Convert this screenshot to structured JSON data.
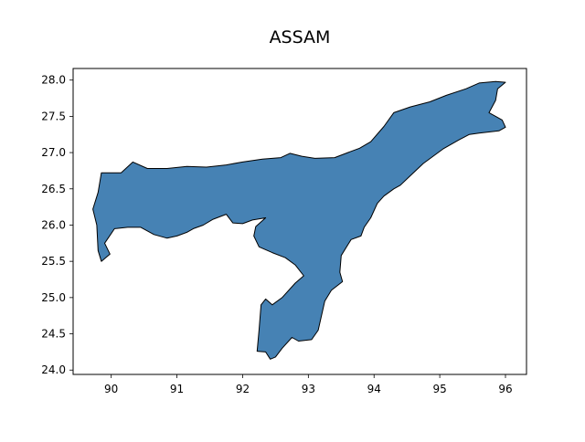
{
  "map": {
    "title": "ASSAM",
    "region_fill": "#4682b4",
    "region_edge": "#000000",
    "xlim": [
      89.42,
      96.32
    ],
    "ylim": [
      23.94,
      28.16
    ],
    "xticks": [
      "90",
      "91",
      "92",
      "93",
      "94",
      "95",
      "96"
    ],
    "yticks": [
      "24.0",
      "24.5",
      "25.0",
      "25.5",
      "26.0",
      "26.5",
      "27.0",
      "27.5",
      "28.0"
    ],
    "outline_lonlat": [
      [
        89.85,
        26.72
      ],
      [
        90.15,
        26.72
      ],
      [
        90.33,
        26.87
      ],
      [
        90.55,
        26.78
      ],
      [
        90.85,
        26.78
      ],
      [
        91.15,
        26.81
      ],
      [
        91.45,
        26.8
      ],
      [
        91.75,
        26.83
      ],
      [
        92.0,
        26.87
      ],
      [
        92.3,
        26.91
      ],
      [
        92.58,
        26.93
      ],
      [
        92.72,
        26.99
      ],
      [
        92.9,
        26.95
      ],
      [
        93.1,
        26.92
      ],
      [
        93.4,
        26.93
      ],
      [
        93.63,
        27.01
      ],
      [
        93.78,
        27.06
      ],
      [
        93.95,
        27.15
      ],
      [
        94.15,
        27.36
      ],
      [
        94.3,
        27.55
      ],
      [
        94.55,
        27.63
      ],
      [
        94.85,
        27.7
      ],
      [
        95.1,
        27.79
      ],
      [
        95.4,
        27.88
      ],
      [
        95.6,
        27.96
      ],
      [
        95.85,
        27.98
      ],
      [
        96.0,
        27.97
      ],
      [
        95.88,
        27.88
      ],
      [
        95.85,
        27.72
      ],
      [
        95.75,
        27.55
      ],
      [
        95.95,
        27.45
      ],
      [
        96.0,
        27.35
      ],
      [
        95.9,
        27.3
      ],
      [
        95.6,
        27.27
      ],
      [
        95.45,
        27.25
      ],
      [
        95.3,
        27.18
      ],
      [
        95.05,
        27.05
      ],
      [
        94.75,
        26.85
      ],
      [
        94.55,
        26.68
      ],
      [
        94.4,
        26.55
      ],
      [
        94.3,
        26.5
      ],
      [
        94.15,
        26.4
      ],
      [
        94.05,
        26.3
      ],
      [
        93.95,
        26.1
      ],
      [
        93.85,
        25.97
      ],
      [
        93.8,
        25.85
      ],
      [
        93.65,
        25.8
      ],
      [
        93.5,
        25.58
      ],
      [
        93.48,
        25.35
      ],
      [
        93.52,
        25.22
      ],
      [
        93.35,
        25.1
      ],
      [
        93.25,
        24.95
      ],
      [
        93.15,
        24.55
      ],
      [
        93.05,
        24.42
      ],
      [
        92.85,
        24.4
      ],
      [
        92.75,
        24.45
      ],
      [
        92.6,
        24.3
      ],
      [
        92.5,
        24.18
      ],
      [
        92.42,
        24.15
      ],
      [
        92.35,
        24.25
      ],
      [
        92.22,
        24.26
      ],
      [
        92.25,
        24.55
      ],
      [
        92.28,
        24.9
      ],
      [
        92.35,
        24.98
      ],
      [
        92.45,
        24.9
      ],
      [
        92.6,
        25.0
      ],
      [
        92.8,
        25.2
      ],
      [
        92.93,
        25.3
      ],
      [
        92.8,
        25.45
      ],
      [
        92.65,
        25.55
      ],
      [
        92.45,
        25.62
      ],
      [
        92.25,
        25.7
      ],
      [
        92.17,
        25.85
      ],
      [
        92.2,
        25.98
      ],
      [
        92.35,
        26.1
      ],
      [
        92.15,
        26.07
      ],
      [
        92.0,
        26.02
      ],
      [
        91.85,
        26.03
      ],
      [
        91.75,
        26.15
      ],
      [
        91.55,
        26.08
      ],
      [
        91.4,
        26.0
      ],
      [
        91.25,
        25.95
      ],
      [
        91.15,
        25.9
      ],
      [
        91.0,
        25.85
      ],
      [
        90.85,
        25.82
      ],
      [
        90.65,
        25.87
      ],
      [
        90.45,
        25.97
      ],
      [
        90.25,
        25.97
      ],
      [
        90.05,
        25.95
      ],
      [
        89.9,
        25.75
      ],
      [
        89.98,
        25.6
      ],
      [
        89.85,
        25.5
      ],
      [
        89.8,
        25.65
      ],
      [
        89.78,
        26.0
      ],
      [
        89.72,
        26.22
      ],
      [
        89.8,
        26.45
      ],
      [
        89.85,
        26.72
      ]
    ]
  }
}
